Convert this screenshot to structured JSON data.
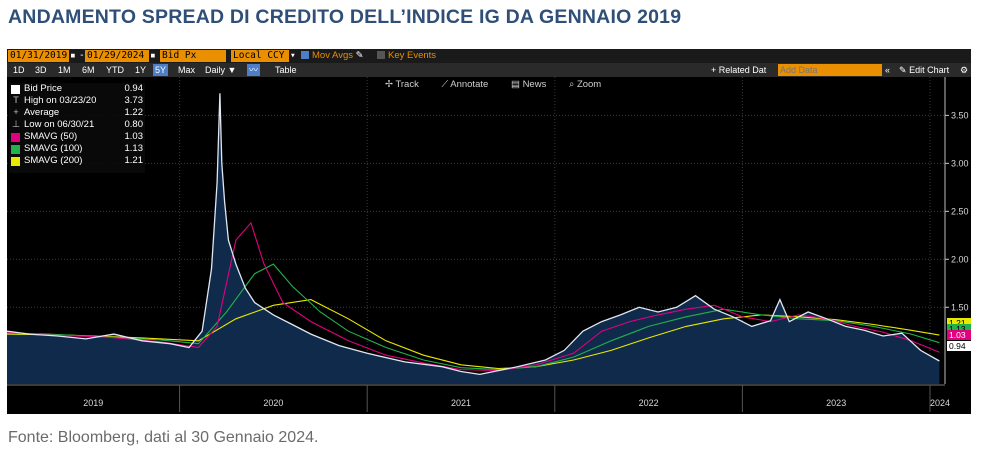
{
  "title": "ANDAMENTO SPREAD DI CREDITO DELL’INDICE IG DA GENNAIO 2019",
  "source": "Fonte: Bloomberg, dati al 30 Gennaio 2024.",
  "toolbar": {
    "start_date": "01/31/2019",
    "end_date": "01/29/2024",
    "field": "Bid Px",
    "currency": "Local CCY",
    "mov_avgs": "Mov Avgs",
    "key_events": "Key Events",
    "periods": [
      "1D",
      "3D",
      "1M",
      "6M",
      "YTD",
      "1Y",
      "5Y",
      "Max"
    ],
    "selected_period": "5Y",
    "frequency": "Daily",
    "table_label": "Table",
    "related_data": "+ Related Dat",
    "add_data_placeholder": "Add Data",
    "edit_chart": "Edit Chart"
  },
  "chart_tools": {
    "track": "Track",
    "annotate": "Annotate",
    "news": "News",
    "zoom": "Zoom"
  },
  "legend": [
    {
      "name": "Bid Price",
      "value": "0.94",
      "color": "#ffffff"
    },
    {
      "name": "High on 03/23/20",
      "value": "3.73",
      "symbol": "T"
    },
    {
      "name": "Average",
      "value": "1.22",
      "symbol": "+"
    },
    {
      "name": "Low on 06/30/21",
      "value": "0.80",
      "symbol": "⊥"
    },
    {
      "name": "SMAVG (50)",
      "value": "1.03",
      "color": "#e0007f"
    },
    {
      "name": "SMAVG (100)",
      "value": "1.13",
      "color": "#22b14c"
    },
    {
      "name": "SMAVG (200)",
      "value": "1.21",
      "color": "#e8e800"
    }
  ],
  "colors": {
    "price": "#dfe7f2",
    "price_fill": "#0f2a4a",
    "sma50": "#e0007f",
    "sma100": "#22b14c",
    "sma200": "#e8e800",
    "brand": "#2f4f78"
  },
  "chart_data": {
    "type": "line",
    "xlabel": "",
    "ylabel": "",
    "x_tick_labels": [
      "2019",
      "2020",
      "2021",
      "2022",
      "2023",
      "2024"
    ],
    "y_tick_labels": [
      "1.50",
      "2.00",
      "2.50",
      "3.00",
      "3.50"
    ],
    "ylim": [
      0.7,
      3.9
    ],
    "xlim": [
      2019.08,
      2024.08
    ],
    "grid": true,
    "legend_position": "top-left",
    "last_value_labels": [
      "1.21",
      "1.13",
      "1.03",
      "0.94"
    ],
    "series": [
      {
        "name": "Bid Price",
        "x": [
          2019.08,
          2019.2,
          2019.35,
          2019.5,
          2019.65,
          2019.8,
          2019.95,
          2020.05,
          2020.12,
          2020.17,
          2020.2,
          2020.215,
          2020.225,
          2020.24,
          2020.26,
          2020.3,
          2020.35,
          2020.4,
          2020.5,
          2020.6,
          2020.7,
          2020.85,
          2021.0,
          2021.2,
          2021.4,
          2021.5,
          2021.6,
          2021.8,
          2021.95,
          2022.05,
          2022.15,
          2022.25,
          2022.35,
          2022.45,
          2022.55,
          2022.65,
          2022.75,
          2022.85,
          2022.95,
          2023.05,
          2023.15,
          2023.2,
          2023.25,
          2023.35,
          2023.45,
          2023.55,
          2023.65,
          2023.75,
          2023.85,
          2023.95,
          2024.05
        ],
        "y": [
          1.25,
          1.22,
          1.2,
          1.17,
          1.22,
          1.15,
          1.12,
          1.08,
          1.25,
          1.9,
          2.8,
          3.73,
          3.0,
          2.6,
          2.2,
          1.95,
          1.7,
          1.55,
          1.42,
          1.32,
          1.22,
          1.1,
          1.02,
          0.93,
          0.88,
          0.83,
          0.8,
          0.88,
          0.95,
          1.05,
          1.25,
          1.35,
          1.42,
          1.5,
          1.45,
          1.5,
          1.62,
          1.48,
          1.4,
          1.3,
          1.36,
          1.58,
          1.35,
          1.45,
          1.38,
          1.3,
          1.26,
          1.2,
          1.23,
          1.05,
          0.94
        ]
      },
      {
        "name": "SMAVG (50)",
        "x": [
          2019.08,
          2019.3,
          2019.6,
          2019.9,
          2020.1,
          2020.2,
          2020.3,
          2020.38,
          2020.45,
          2020.55,
          2020.7,
          2020.9,
          2021.1,
          2021.3,
          2021.5,
          2021.7,
          2021.9,
          2022.1,
          2022.25,
          2022.4,
          2022.55,
          2022.7,
          2022.85,
          2023.0,
          2023.15,
          2023.3,
          2023.45,
          2023.6,
          2023.75,
          2023.9,
          2024.05
        ],
        "y": [
          1.24,
          1.21,
          1.19,
          1.14,
          1.08,
          1.3,
          2.2,
          2.38,
          1.95,
          1.55,
          1.35,
          1.15,
          1.0,
          0.92,
          0.85,
          0.84,
          0.9,
          1.02,
          1.25,
          1.35,
          1.42,
          1.48,
          1.52,
          1.4,
          1.35,
          1.42,
          1.38,
          1.3,
          1.24,
          1.15,
          1.03
        ]
      },
      {
        "name": "SMAVG (100)",
        "x": [
          2019.08,
          2019.3,
          2019.6,
          2019.9,
          2020.1,
          2020.25,
          2020.4,
          2020.5,
          2020.6,
          2020.75,
          2020.9,
          2021.1,
          2021.3,
          2021.5,
          2021.7,
          2021.9,
          2022.1,
          2022.3,
          2022.5,
          2022.7,
          2022.9,
          2023.1,
          2023.3,
          2023.5,
          2023.7,
          2023.9,
          2024.05
        ],
        "y": [
          1.23,
          1.22,
          1.19,
          1.16,
          1.12,
          1.45,
          1.85,
          1.95,
          1.72,
          1.45,
          1.25,
          1.08,
          0.95,
          0.87,
          0.85,
          0.88,
          0.98,
          1.15,
          1.3,
          1.4,
          1.48,
          1.42,
          1.38,
          1.36,
          1.3,
          1.22,
          1.13
        ]
      },
      {
        "name": "SMAVG (200)",
        "x": [
          2019.08,
          2019.4,
          2019.8,
          2020.1,
          2020.3,
          2020.5,
          2020.7,
          2020.9,
          2021.1,
          2021.3,
          2021.5,
          2021.7,
          2021.9,
          2022.1,
          2022.3,
          2022.5,
          2022.7,
          2022.9,
          2023.1,
          2023.3,
          2023.5,
          2023.7,
          2023.9,
          2024.05
        ],
        "y": [
          1.22,
          1.21,
          1.18,
          1.15,
          1.38,
          1.52,
          1.58,
          1.38,
          1.15,
          1.0,
          0.9,
          0.86,
          0.88,
          0.95,
          1.05,
          1.18,
          1.3,
          1.38,
          1.42,
          1.4,
          1.37,
          1.32,
          1.26,
          1.21
        ]
      }
    ]
  }
}
